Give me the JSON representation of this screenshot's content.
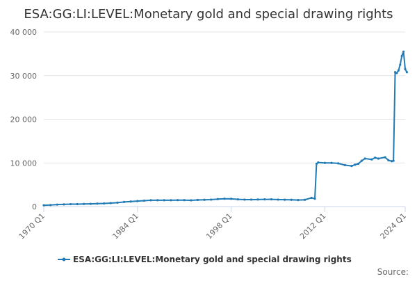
{
  "chart_data": {
    "type": "line",
    "title": "ESA:GG:LI:LEVEL:Monetary gold and special drawing rights",
    "xlabel": "",
    "ylabel": "",
    "x_tick_labels": [
      "1970 Q1",
      "1984 Q1",
      "1998 Q1",
      "2012 Q1",
      "2024 Q1"
    ],
    "y_ticks": [
      0,
      10000,
      20000,
      30000,
      40000
    ],
    "y_tick_labels": [
      "0",
      "10 000",
      "20 000",
      "30 000",
      "40 000"
    ],
    "ylim": [
      0,
      40000
    ],
    "xlim": [
      "1970 Q1",
      "2024 Q1"
    ],
    "grid": true,
    "legend_position": "bottom",
    "source_label": "Source:",
    "colors": {
      "series": "#1f7ab5",
      "grid": "#e6e6e6",
      "axis": "#ccd6eb"
    },
    "series": [
      {
        "name": "ESA:GG:LI:LEVEL:Monetary gold and special drawing rights",
        "points": [
          [
            "1970 Q1",
            300
          ],
          [
            "1971 Q1",
            350
          ],
          [
            "1972 Q1",
            450
          ],
          [
            "1973 Q1",
            500
          ],
          [
            "1974 Q1",
            550
          ],
          [
            "1975 Q1",
            560
          ],
          [
            "1976 Q1",
            600
          ],
          [
            "1977 Q1",
            620
          ],
          [
            "1978 Q1",
            680
          ],
          [
            "1979 Q1",
            720
          ],
          [
            "1980 Q1",
            800
          ],
          [
            "1981 Q1",
            900
          ],
          [
            "1982 Q1",
            1050
          ],
          [
            "1983 Q1",
            1150
          ],
          [
            "1984 Q1",
            1250
          ],
          [
            "1985 Q1",
            1350
          ],
          [
            "1986 Q1",
            1450
          ],
          [
            "1987 Q1",
            1450
          ],
          [
            "1988 Q1",
            1450
          ],
          [
            "1989 Q1",
            1450
          ],
          [
            "1990 Q1",
            1480
          ],
          [
            "1991 Q1",
            1470
          ],
          [
            "1992 Q1",
            1430
          ],
          [
            "1993 Q1",
            1520
          ],
          [
            "1994 Q1",
            1550
          ],
          [
            "1995 Q1",
            1600
          ],
          [
            "1996 Q1",
            1720
          ],
          [
            "1997 Q1",
            1800
          ],
          [
            "1998 Q1",
            1780
          ],
          [
            "1999 Q1",
            1650
          ],
          [
            "2000 Q1",
            1600
          ],
          [
            "2001 Q1",
            1600
          ],
          [
            "2002 Q1",
            1620
          ],
          [
            "2003 Q1",
            1650
          ],
          [
            "2004 Q1",
            1650
          ],
          [
            "2005 Q1",
            1600
          ],
          [
            "2006 Q1",
            1580
          ],
          [
            "2007 Q1",
            1550
          ],
          [
            "2008 Q1",
            1500
          ],
          [
            "2009 Q1",
            1550
          ],
          [
            "2010 Q1",
            2000
          ],
          [
            "2010 Q3",
            1800
          ],
          [
            "2010 Q4",
            9800
          ],
          [
            "2011 Q1",
            10100
          ],
          [
            "2012 Q1",
            10000
          ],
          [
            "2013 Q1",
            10000
          ],
          [
            "2014 Q1",
            9900
          ],
          [
            "2015 Q1",
            9500
          ],
          [
            "2016 Q1",
            9300
          ],
          [
            "2016 Q3",
            9600
          ],
          [
            "2017 Q1",
            9800
          ],
          [
            "2017 Q3",
            10500
          ],
          [
            "2018 Q1",
            11000
          ],
          [
            "2019 Q1",
            10800
          ],
          [
            "2019 Q3",
            11200
          ],
          [
            "2020 Q1",
            11000
          ],
          [
            "2021 Q1",
            11300
          ],
          [
            "2021 Q3",
            10600
          ],
          [
            "2022 Q1",
            10400
          ],
          [
            "2022 Q2",
            10500
          ],
          [
            "2022 Q3",
            30800
          ],
          [
            "2022 Q4",
            30600
          ],
          [
            "2023 Q1",
            31200
          ],
          [
            "2023 Q2",
            32500
          ],
          [
            "2023 Q3",
            34500
          ],
          [
            "2023 Q4",
            35500
          ],
          [
            "2024 Q1",
            31500
          ],
          [
            "2024 Q2",
            30800
          ]
        ]
      }
    ]
  }
}
